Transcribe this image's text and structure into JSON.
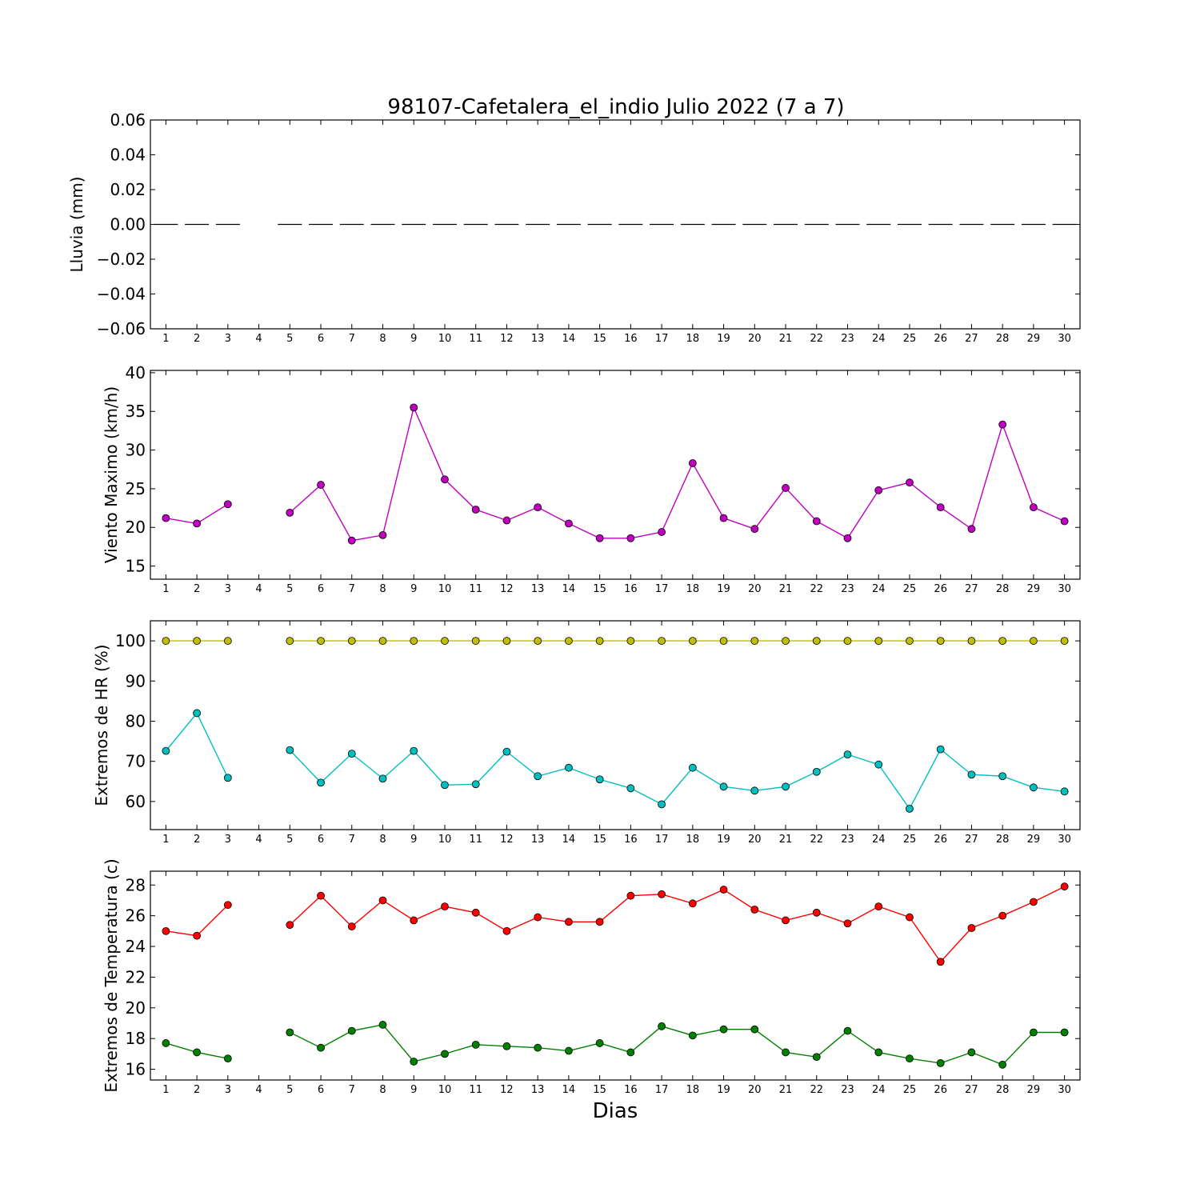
{
  "title": "98107-Cafetalera_el_indio Julio 2022  (7 a 7)",
  "xlabel": "Dias",
  "x_ticks": [
    1,
    2,
    3,
    4,
    5,
    6,
    7,
    8,
    9,
    10,
    11,
    12,
    13,
    14,
    15,
    16,
    17,
    18,
    19,
    20,
    21,
    22,
    23,
    24,
    25,
    26,
    27,
    28,
    29,
    30
  ],
  "chart_data": [
    {
      "type": "bar",
      "ylabel": "Lluvia (mm)",
      "ylim": [
        -0.06,
        0.06
      ],
      "yticks": [
        0.06,
        0.04,
        0.02,
        0.0,
        -0.02,
        -0.04,
        -0.06
      ],
      "yticks_labels": [
        "0.06",
        "0.04",
        "0.02",
        "0.00",
        "−0.02",
        "−0.04",
        "−0.06"
      ],
      "x": [
        1,
        2,
        3,
        4,
        5,
        6,
        7,
        8,
        9,
        10,
        11,
        12,
        13,
        14,
        15,
        16,
        17,
        18,
        19,
        20,
        21,
        22,
        23,
        24,
        25,
        26,
        27,
        28,
        29,
        30
      ],
      "series": [
        {
          "color": "#000000",
          "values": [
            0,
            0,
            0,
            null,
            0,
            0,
            0,
            0,
            0,
            0,
            0,
            0,
            0,
            0,
            0,
            0,
            0,
            0,
            0,
            0,
            0,
            0,
            0,
            0,
            0,
            0,
            0,
            0,
            0,
            0
          ]
        }
      ]
    },
    {
      "type": "line",
      "ylabel": "Viento Maximo (km/h)",
      "ylim": [
        13.3,
        40.3
      ],
      "yticks": [
        15,
        20,
        25,
        30,
        35,
        40
      ],
      "yticks_labels": [
        "15",
        "20",
        "25",
        "30",
        "35",
        "40"
      ],
      "x": [
        1,
        2,
        3,
        4,
        5,
        6,
        7,
        8,
        9,
        10,
        11,
        12,
        13,
        14,
        15,
        16,
        17,
        18,
        19,
        20,
        21,
        22,
        23,
        24,
        25,
        26,
        27,
        28,
        29,
        30
      ],
      "series": [
        {
          "color": "#bf00bf",
          "values": [
            21.2,
            20.5,
            23.0,
            null,
            21.9,
            25.5,
            18.3,
            19.0,
            35.5,
            26.2,
            22.3,
            20.9,
            22.6,
            20.5,
            18.6,
            18.6,
            19.4,
            28.3,
            21.2,
            19.8,
            25.1,
            20.8,
            18.6,
            24.8,
            25.8,
            22.6,
            19.8,
            33.3,
            22.6,
            20.8
          ]
        }
      ]
    },
    {
      "type": "line",
      "ylabel": "Extremos de HR (%)",
      "ylim": [
        53,
        105
      ],
      "yticks": [
        60,
        70,
        80,
        90,
        100
      ],
      "yticks_labels": [
        "60",
        "70",
        "80",
        "90",
        "100"
      ],
      "x": [
        1,
        2,
        3,
        4,
        5,
        6,
        7,
        8,
        9,
        10,
        11,
        12,
        13,
        14,
        15,
        16,
        17,
        18,
        19,
        20,
        21,
        22,
        23,
        24,
        25,
        26,
        27,
        28,
        29,
        30
      ],
      "series": [
        {
          "color": "#bfbf00",
          "values": [
            100,
            100,
            100,
            null,
            100,
            100,
            100,
            100,
            100,
            100,
            100,
            100,
            100,
            100,
            100,
            100,
            100,
            100,
            100,
            100,
            100,
            100,
            100,
            100,
            100,
            100,
            100,
            100,
            100,
            100
          ]
        },
        {
          "color": "#00bfbf",
          "values": [
            72.6,
            82.0,
            65.9,
            null,
            72.8,
            64.7,
            71.9,
            65.7,
            72.6,
            64.1,
            64.3,
            72.4,
            66.3,
            68.4,
            65.5,
            63.3,
            59.3,
            68.4,
            63.7,
            62.7,
            63.7,
            67.4,
            71.7,
            69.2,
            58.2,
            73.0,
            66.7,
            66.3,
            63.5,
            62.5
          ]
        }
      ]
    },
    {
      "type": "line",
      "ylabel": "Extremos de Temperatura (c)",
      "ylim": [
        15.3,
        28.9
      ],
      "yticks": [
        16,
        18,
        20,
        22,
        24,
        26,
        28
      ],
      "yticks_labels": [
        "16",
        "18",
        "20",
        "22",
        "24",
        "26",
        "28"
      ],
      "x": [
        1,
        2,
        3,
        4,
        5,
        6,
        7,
        8,
        9,
        10,
        11,
        12,
        13,
        14,
        15,
        16,
        17,
        18,
        19,
        20,
        21,
        22,
        23,
        24,
        25,
        26,
        27,
        28,
        29,
        30
      ],
      "series": [
        {
          "color": "#ff0000",
          "values": [
            25.0,
            24.7,
            26.7,
            null,
            25.4,
            27.3,
            25.3,
            27.0,
            25.7,
            26.6,
            26.2,
            25.0,
            25.9,
            25.6,
            25.6,
            27.3,
            27.4,
            26.8,
            27.7,
            26.4,
            25.7,
            26.2,
            25.5,
            26.6,
            25.9,
            23.0,
            25.2,
            26.0,
            26.9,
            27.9
          ]
        },
        {
          "color": "#008000",
          "values": [
            17.7,
            17.1,
            16.7,
            null,
            18.4,
            17.4,
            18.5,
            18.9,
            16.5,
            17.0,
            17.6,
            17.5,
            17.4,
            17.2,
            17.7,
            17.1,
            18.8,
            18.2,
            18.6,
            18.6,
            17.1,
            16.8,
            18.5,
            17.1,
            16.7,
            16.4,
            17.1,
            16.3,
            18.4,
            18.4
          ]
        }
      ]
    }
  ]
}
